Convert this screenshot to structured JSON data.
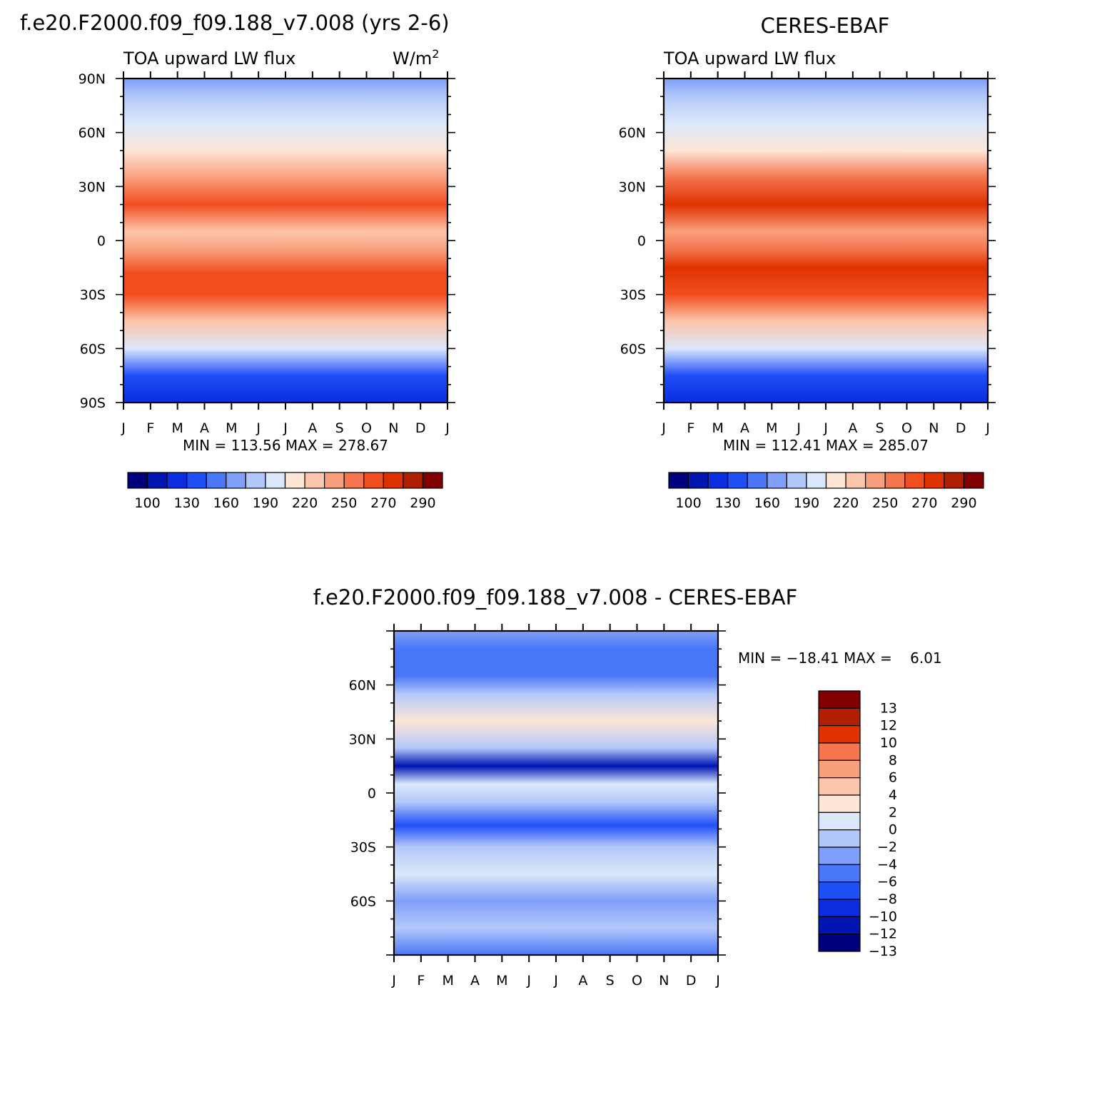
{
  "palettes": {
    "abs": [
      "#00007f",
      "#0015b2",
      "#0a2de0",
      "#1f4ff7",
      "#4a77f8",
      "#7f9ff9",
      "#b3c8fa",
      "#dbe8fb",
      "#fde6d6",
      "#fcc6ac",
      "#f8a07c",
      "#f4754e",
      "#f14e20",
      "#e03200",
      "#b02000",
      "#800000"
    ],
    "diff": [
      "#00007f",
      "#0015b2",
      "#0a2de0",
      "#1f4ff7",
      "#4a77f8",
      "#7f9ff9",
      "#b3c8fa",
      "#dbe8fb",
      "#fde6d6",
      "#fcc6ac",
      "#f8a07c",
      "#f4754e",
      "#e03200",
      "#b02000",
      "#800000"
    ]
  },
  "chart_data": [
    {
      "type": "heatmap",
      "title": "f.e20.F2000.f09_f09.188_v7.008 (yrs 2-6)",
      "subtitle_left": "TOA upward LW flux",
      "units": "W/m2",
      "units_base": "W/m",
      "units_sup": "2",
      "x": [
        "J",
        "F",
        "M",
        "A",
        "M",
        "J",
        "J",
        "A",
        "S",
        "O",
        "N",
        "D",
        "J"
      ],
      "y_ticks": [
        "90N",
        "60N",
        "30N",
        "0",
        "30S",
        "60S",
        "90S"
      ],
      "ylim": [
        -90,
        90
      ],
      "minmax": "MIN = 113.56 MAX = 278.67",
      "min": 113.56,
      "max": 278.67,
      "colorbar_labels": [
        "100",
        "130",
        "160",
        "190",
        "220",
        "250",
        "270",
        "290"
      ],
      "colorbar_levels": [
        100,
        115,
        130,
        145,
        160,
        175,
        190,
        205,
        220,
        235,
        250,
        260,
        270,
        280,
        290
      ],
      "latitude_profile": [
        {
          "lat": -90,
          "flux": 120
        },
        {
          "lat": -75,
          "flux": 138
        },
        {
          "lat": -60,
          "flux": 196
        },
        {
          "lat": -45,
          "flux": 228
        },
        {
          "lat": -30,
          "flux": 262
        },
        {
          "lat": -18,
          "flux": 268
        },
        {
          "lat": -5,
          "flux": 244
        },
        {
          "lat": 5,
          "flux": 232
        },
        {
          "lat": 20,
          "flux": 264
        },
        {
          "lat": 35,
          "flux": 248
        },
        {
          "lat": 50,
          "flux": 212
        },
        {
          "lat": 65,
          "flux": 190
        },
        {
          "lat": 80,
          "flux": 176
        },
        {
          "lat": 90,
          "flux": 170
        }
      ]
    },
    {
      "type": "heatmap",
      "title": "CERES-EBAF",
      "subtitle_left": "TOA upward LW flux",
      "x": [
        "J",
        "F",
        "M",
        "A",
        "M",
        "J",
        "J",
        "A",
        "S",
        "O",
        "N",
        "D",
        "J"
      ],
      "y_ticks": [
        "",
        "60N",
        "30N",
        "0",
        "30S",
        "60S",
        ""
      ],
      "ylim": [
        -90,
        90
      ],
      "minmax": "MIN = 112.41 MAX = 285.07",
      "min": 112.41,
      "max": 285.07,
      "colorbar_labels": [
        "100",
        "130",
        "160",
        "190",
        "220",
        "250",
        "270",
        "290"
      ],
      "colorbar_levels": [
        100,
        115,
        130,
        145,
        160,
        175,
        190,
        205,
        220,
        235,
        250,
        260,
        270,
        280,
        290
      ],
      "latitude_profile": [
        {
          "lat": -90,
          "flux": 120
        },
        {
          "lat": -75,
          "flux": 140
        },
        {
          "lat": -60,
          "flux": 198
        },
        {
          "lat": -45,
          "flux": 232
        },
        {
          "lat": -30,
          "flux": 262
        },
        {
          "lat": -15,
          "flux": 270
        },
        {
          "lat": -5,
          "flux": 250
        },
        {
          "lat": 5,
          "flux": 240
        },
        {
          "lat": 20,
          "flux": 270
        },
        {
          "lat": 35,
          "flux": 250
        },
        {
          "lat": 50,
          "flux": 215
        },
        {
          "lat": 65,
          "flux": 195
        },
        {
          "lat": 80,
          "flux": 178
        },
        {
          "lat": 90,
          "flux": 172
        }
      ]
    },
    {
      "type": "heatmap",
      "title": "f.e20.F2000.f09_f09.188_v7.008 - CERES-EBAF",
      "x": [
        "J",
        "F",
        "M",
        "A",
        "M",
        "J",
        "J",
        "A",
        "S",
        "O",
        "N",
        "D",
        "J"
      ],
      "y_ticks": [
        "",
        "60N",
        "30N",
        "0",
        "30S",
        "60S",
        ""
      ],
      "ylim": [
        -90,
        90
      ],
      "minmax": "MIN = −18.41 MAX =    6.01",
      "min": -18.41,
      "max": 6.01,
      "colorbar_labels": [
        "13",
        "12",
        "10",
        "8",
        "6",
        "4",
        "2",
        "0",
        "−2",
        "−4",
        "−6",
        "−8",
        "−10",
        "−12",
        "−13"
      ],
      "colorbar_levels": [
        -13,
        -12,
        -10,
        -8,
        -6,
        -4,
        -2,
        0,
        2,
        4,
        6,
        8,
        10,
        12,
        13
      ],
      "latitude_profile": [
        {
          "lat": -90,
          "diff": -7
        },
        {
          "lat": -75,
          "diff": -3
        },
        {
          "lat": -60,
          "diff": -5
        },
        {
          "lat": -45,
          "diff": -2
        },
        {
          "lat": -30,
          "diff": -3
        },
        {
          "lat": -18,
          "diff": -9
        },
        {
          "lat": -5,
          "diff": -3
        },
        {
          "lat": 5,
          "diff": -1
        },
        {
          "lat": 15,
          "diff": -13
        },
        {
          "lat": 25,
          "diff": -4
        },
        {
          "lat": 40,
          "diff": 1
        },
        {
          "lat": 55,
          "diff": -3
        },
        {
          "lat": 65,
          "diff": -7
        },
        {
          "lat": 80,
          "diff": -8
        },
        {
          "lat": 90,
          "diff": -6
        }
      ]
    }
  ]
}
